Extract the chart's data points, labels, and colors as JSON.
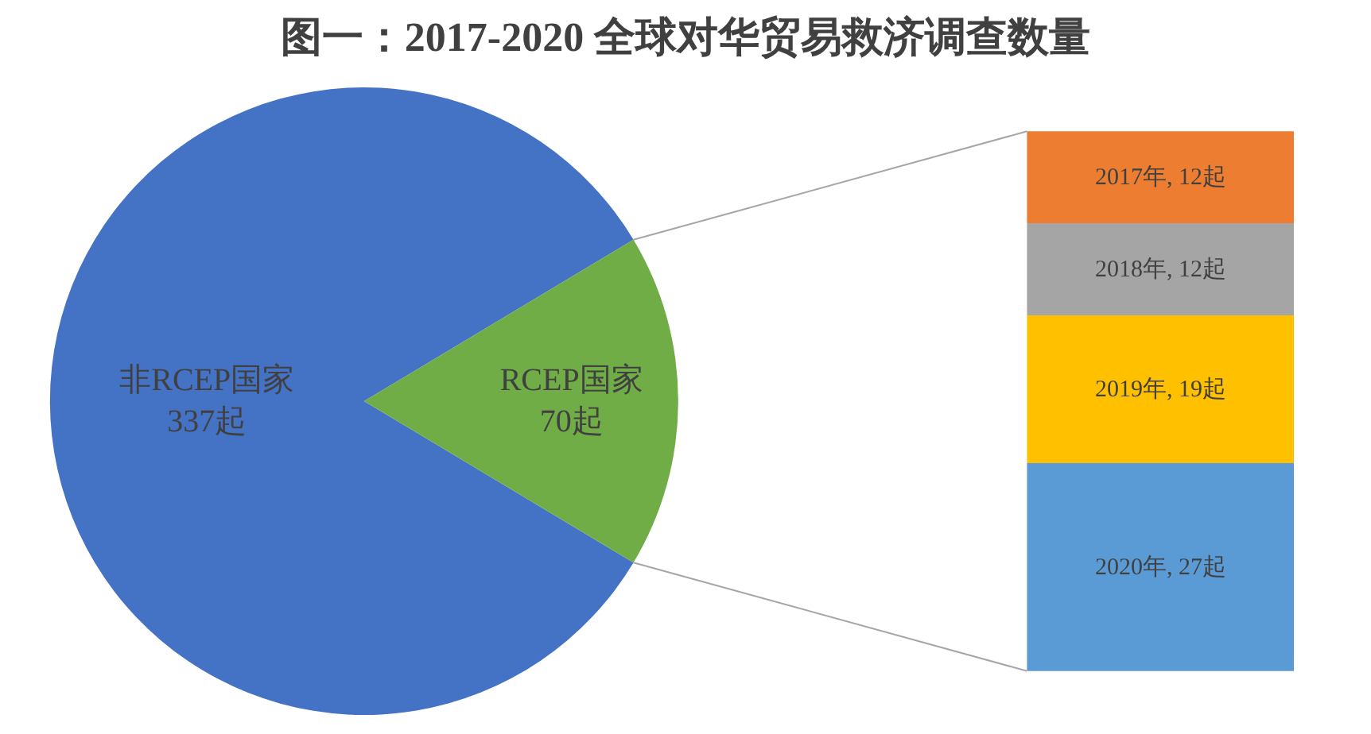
{
  "chart_data": [
    {
      "type": "pie",
      "title": "图一：2017-2020 全球对华贸易救济调查数量",
      "categories": [
        "非RCEP国家",
        "RCEP国家"
      ],
      "values": [
        337,
        70
      ],
      "colors": [
        "#4472c4",
        "#70ad47"
      ],
      "value_labels": [
        "337起",
        "70起"
      ]
    },
    {
      "type": "bar",
      "stacked": true,
      "categories": [
        null
      ],
      "series": [
        {
          "color": "#5b9bd5",
          "values": [
            27
          ],
          "value_labels": [
            "2020年, 27起"
          ]
        },
        {
          "color": "#ffc000",
          "values": [
            19
          ],
          "value_labels": [
            "2019年, 19起"
          ]
        },
        {
          "color": "#a5a5a5",
          "values": [
            12
          ],
          "value_labels": [
            "2018年, 12起"
          ]
        },
        {
          "color": "#ed7d31",
          "values": [
            12
          ],
          "value_labels": [
            "2017年, 12起"
          ]
        }
      ]
    }
  ]
}
